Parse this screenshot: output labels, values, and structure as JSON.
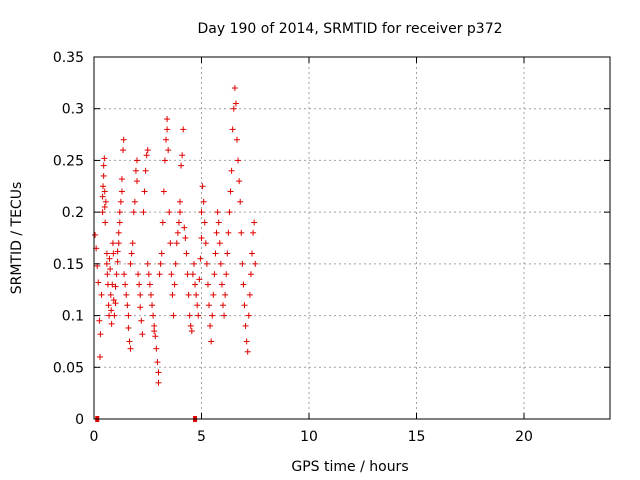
{
  "chart_data": {
    "type": "scatter",
    "title": "Day 190 of 2014, SRMTID for receiver p372",
    "xlabel": "GPS time / hours",
    "ylabel": "SRMTID / TECUs",
    "xlim": [
      0,
      24
    ],
    "ylim": [
      0,
      0.35
    ],
    "xticks": [
      0,
      5,
      10,
      15,
      20
    ],
    "xtick_labels": [
      "0",
      "5",
      "10",
      "15",
      "20"
    ],
    "yticks": [
      0,
      0.05,
      0.1,
      0.15,
      0.2,
      0.25,
      0.3,
      0.35
    ],
    "ytick_labels": [
      "0",
      "0.05",
      "0.1",
      "0.15",
      "0.2",
      "0.25",
      "0.3",
      "0.35"
    ],
    "grid": true,
    "marker": "plus",
    "color": "#e00000",
    "series": [
      {
        "name": "SRMTID",
        "points": [
          [
            0.05,
            0.178
          ],
          [
            0.1,
            0.165
          ],
          [
            0.15,
            0.148
          ],
          [
            0.2,
            0.132
          ],
          [
            0.25,
            0.095
          ],
          [
            0.28,
            0.06
          ],
          [
            0.3,
            0.082
          ],
          [
            0.35,
            0.12
          ],
          [
            0.4,
            0.2
          ],
          [
            0.4,
            0.215
          ],
          [
            0.42,
            0.225
          ],
          [
            0.45,
            0.235
          ],
          [
            0.45,
            0.245
          ],
          [
            0.48,
            0.252
          ],
          [
            0.5,
            0.22
          ],
          [
            0.5,
            0.205
          ],
          [
            0.52,
            0.19
          ],
          [
            0.55,
            0.21
          ],
          [
            0.6,
            0.16
          ],
          [
            0.6,
            0.15
          ],
          [
            0.62,
            0.14
          ],
          [
            0.65,
            0.13
          ],
          [
            0.68,
            0.11
          ],
          [
            0.7,
            0.1
          ],
          [
            0.72,
            0.155
          ],
          [
            0.75,
            0.145
          ],
          [
            0.78,
            0.12
          ],
          [
            0.8,
            0.105
          ],
          [
            0.82,
            0.092
          ],
          [
            0.85,
            0.13
          ],
          [
            0.88,
            0.17
          ],
          [
            0.9,
            0.16
          ],
          [
            0.92,
            0.115
          ],
          [
            0.95,
            0.1
          ],
          [
            1.0,
            0.112
          ],
          [
            1.0,
            0.128
          ],
          [
            1.05,
            0.14
          ],
          [
            1.1,
            0.152
          ],
          [
            1.1,
            0.162
          ],
          [
            1.15,
            0.17
          ],
          [
            1.15,
            0.18
          ],
          [
            1.2,
            0.19
          ],
          [
            1.2,
            0.2
          ],
          [
            1.25,
            0.21
          ],
          [
            1.3,
            0.22
          ],
          [
            1.3,
            0.232
          ],
          [
            1.35,
            0.26
          ],
          [
            1.38,
            0.27
          ],
          [
            1.4,
            0.14
          ],
          [
            1.45,
            0.13
          ],
          [
            1.5,
            0.12
          ],
          [
            1.55,
            0.11
          ],
          [
            1.6,
            0.1
          ],
          [
            1.6,
            0.088
          ],
          [
            1.65,
            0.075
          ],
          [
            1.7,
            0.068
          ],
          [
            1.7,
            0.15
          ],
          [
            1.75,
            0.16
          ],
          [
            1.8,
            0.17
          ],
          [
            1.85,
            0.2
          ],
          [
            1.9,
            0.21
          ],
          [
            1.95,
            0.24
          ],
          [
            2.0,
            0.25
          ],
          [
            2.0,
            0.23
          ],
          [
            2.05,
            0.14
          ],
          [
            2.1,
            0.13
          ],
          [
            2.15,
            0.12
          ],
          [
            2.15,
            0.108
          ],
          [
            2.2,
            0.095
          ],
          [
            2.25,
            0.082
          ],
          [
            2.3,
            0.2
          ],
          [
            2.35,
            0.22
          ],
          [
            2.4,
            0.24
          ],
          [
            2.45,
            0.255
          ],
          [
            2.5,
            0.26
          ],
          [
            2.5,
            0.15
          ],
          [
            2.55,
            0.14
          ],
          [
            2.6,
            0.13
          ],
          [
            2.65,
            0.12
          ],
          [
            2.7,
            0.11
          ],
          [
            2.75,
            0.1
          ],
          [
            2.8,
            0.09
          ],
          [
            2.8,
            0.085
          ],
          [
            2.85,
            0.08
          ],
          [
            2.9,
            0.068
          ],
          [
            2.95,
            0.055
          ],
          [
            3.0,
            0.045
          ],
          [
            3.0,
            0.035
          ],
          [
            3.05,
            0.14
          ],
          [
            3.1,
            0.15
          ],
          [
            3.15,
            0.16
          ],
          [
            3.2,
            0.19
          ],
          [
            3.25,
            0.22
          ],
          [
            3.3,
            0.25
          ],
          [
            3.35,
            0.27
          ],
          [
            3.4,
            0.29
          ],
          [
            3.4,
            0.28
          ],
          [
            3.45,
            0.26
          ],
          [
            3.5,
            0.2
          ],
          [
            3.55,
            0.17
          ],
          [
            3.6,
            0.14
          ],
          [
            3.65,
            0.12
          ],
          [
            3.7,
            0.1
          ],
          [
            3.75,
            0.13
          ],
          [
            3.8,
            0.15
          ],
          [
            3.85,
            0.17
          ],
          [
            3.9,
            0.18
          ],
          [
            3.95,
            0.19
          ],
          [
            4.0,
            0.2
          ],
          [
            4.0,
            0.21
          ],
          [
            4.05,
            0.245
          ],
          [
            4.1,
            0.255
          ],
          [
            4.15,
            0.28
          ],
          [
            4.2,
            0.185
          ],
          [
            4.25,
            0.175
          ],
          [
            4.3,
            0.16
          ],
          [
            4.35,
            0.14
          ],
          [
            4.4,
            0.12
          ],
          [
            4.45,
            0.1
          ],
          [
            4.5,
            0.09
          ],
          [
            4.55,
            0.085
          ],
          [
            4.6,
            0.14
          ],
          [
            4.65,
            0.15
          ],
          [
            4.7,
            0.13
          ],
          [
            4.75,
            0.12
          ],
          [
            4.8,
            0.11
          ],
          [
            4.85,
            0.1
          ],
          [
            4.9,
            0.135
          ],
          [
            4.95,
            0.155
          ],
          [
            5.0,
            0.175
          ],
          [
            5.0,
            0.2
          ],
          [
            5.05,
            0.225
          ],
          [
            5.1,
            0.21
          ],
          [
            5.15,
            0.19
          ],
          [
            5.2,
            0.17
          ],
          [
            5.25,
            0.15
          ],
          [
            5.3,
            0.13
          ],
          [
            5.35,
            0.11
          ],
          [
            5.4,
            0.09
          ],
          [
            5.45,
            0.075
          ],
          [
            5.5,
            0.1
          ],
          [
            5.55,
            0.12
          ],
          [
            5.6,
            0.14
          ],
          [
            5.65,
            0.16
          ],
          [
            5.7,
            0.18
          ],
          [
            5.75,
            0.2
          ],
          [
            5.8,
            0.19
          ],
          [
            5.85,
            0.17
          ],
          [
            5.9,
            0.15
          ],
          [
            5.95,
            0.13
          ],
          [
            6.0,
            0.11
          ],
          [
            6.05,
            0.1
          ],
          [
            6.1,
            0.12
          ],
          [
            6.15,
            0.14
          ],
          [
            6.2,
            0.16
          ],
          [
            6.25,
            0.18
          ],
          [
            6.3,
            0.2
          ],
          [
            6.35,
            0.22
          ],
          [
            6.4,
            0.24
          ],
          [
            6.45,
            0.28
          ],
          [
            6.5,
            0.3
          ],
          [
            6.55,
            0.32
          ],
          [
            6.6,
            0.305
          ],
          [
            6.65,
            0.27
          ],
          [
            6.7,
            0.25
          ],
          [
            6.75,
            0.23
          ],
          [
            6.8,
            0.21
          ],
          [
            6.85,
            0.18
          ],
          [
            6.9,
            0.15
          ],
          [
            6.95,
            0.13
          ],
          [
            7.0,
            0.11
          ],
          [
            7.05,
            0.09
          ],
          [
            7.1,
            0.075
          ],
          [
            7.15,
            0.065
          ],
          [
            7.2,
            0.1
          ],
          [
            7.25,
            0.12
          ],
          [
            7.3,
            0.14
          ],
          [
            7.35,
            0.16
          ],
          [
            7.4,
            0.18
          ],
          [
            7.45,
            0.19
          ],
          [
            7.5,
            0.15
          ]
        ]
      }
    ],
    "zero_markers": [
      0.15,
      4.7
    ]
  }
}
